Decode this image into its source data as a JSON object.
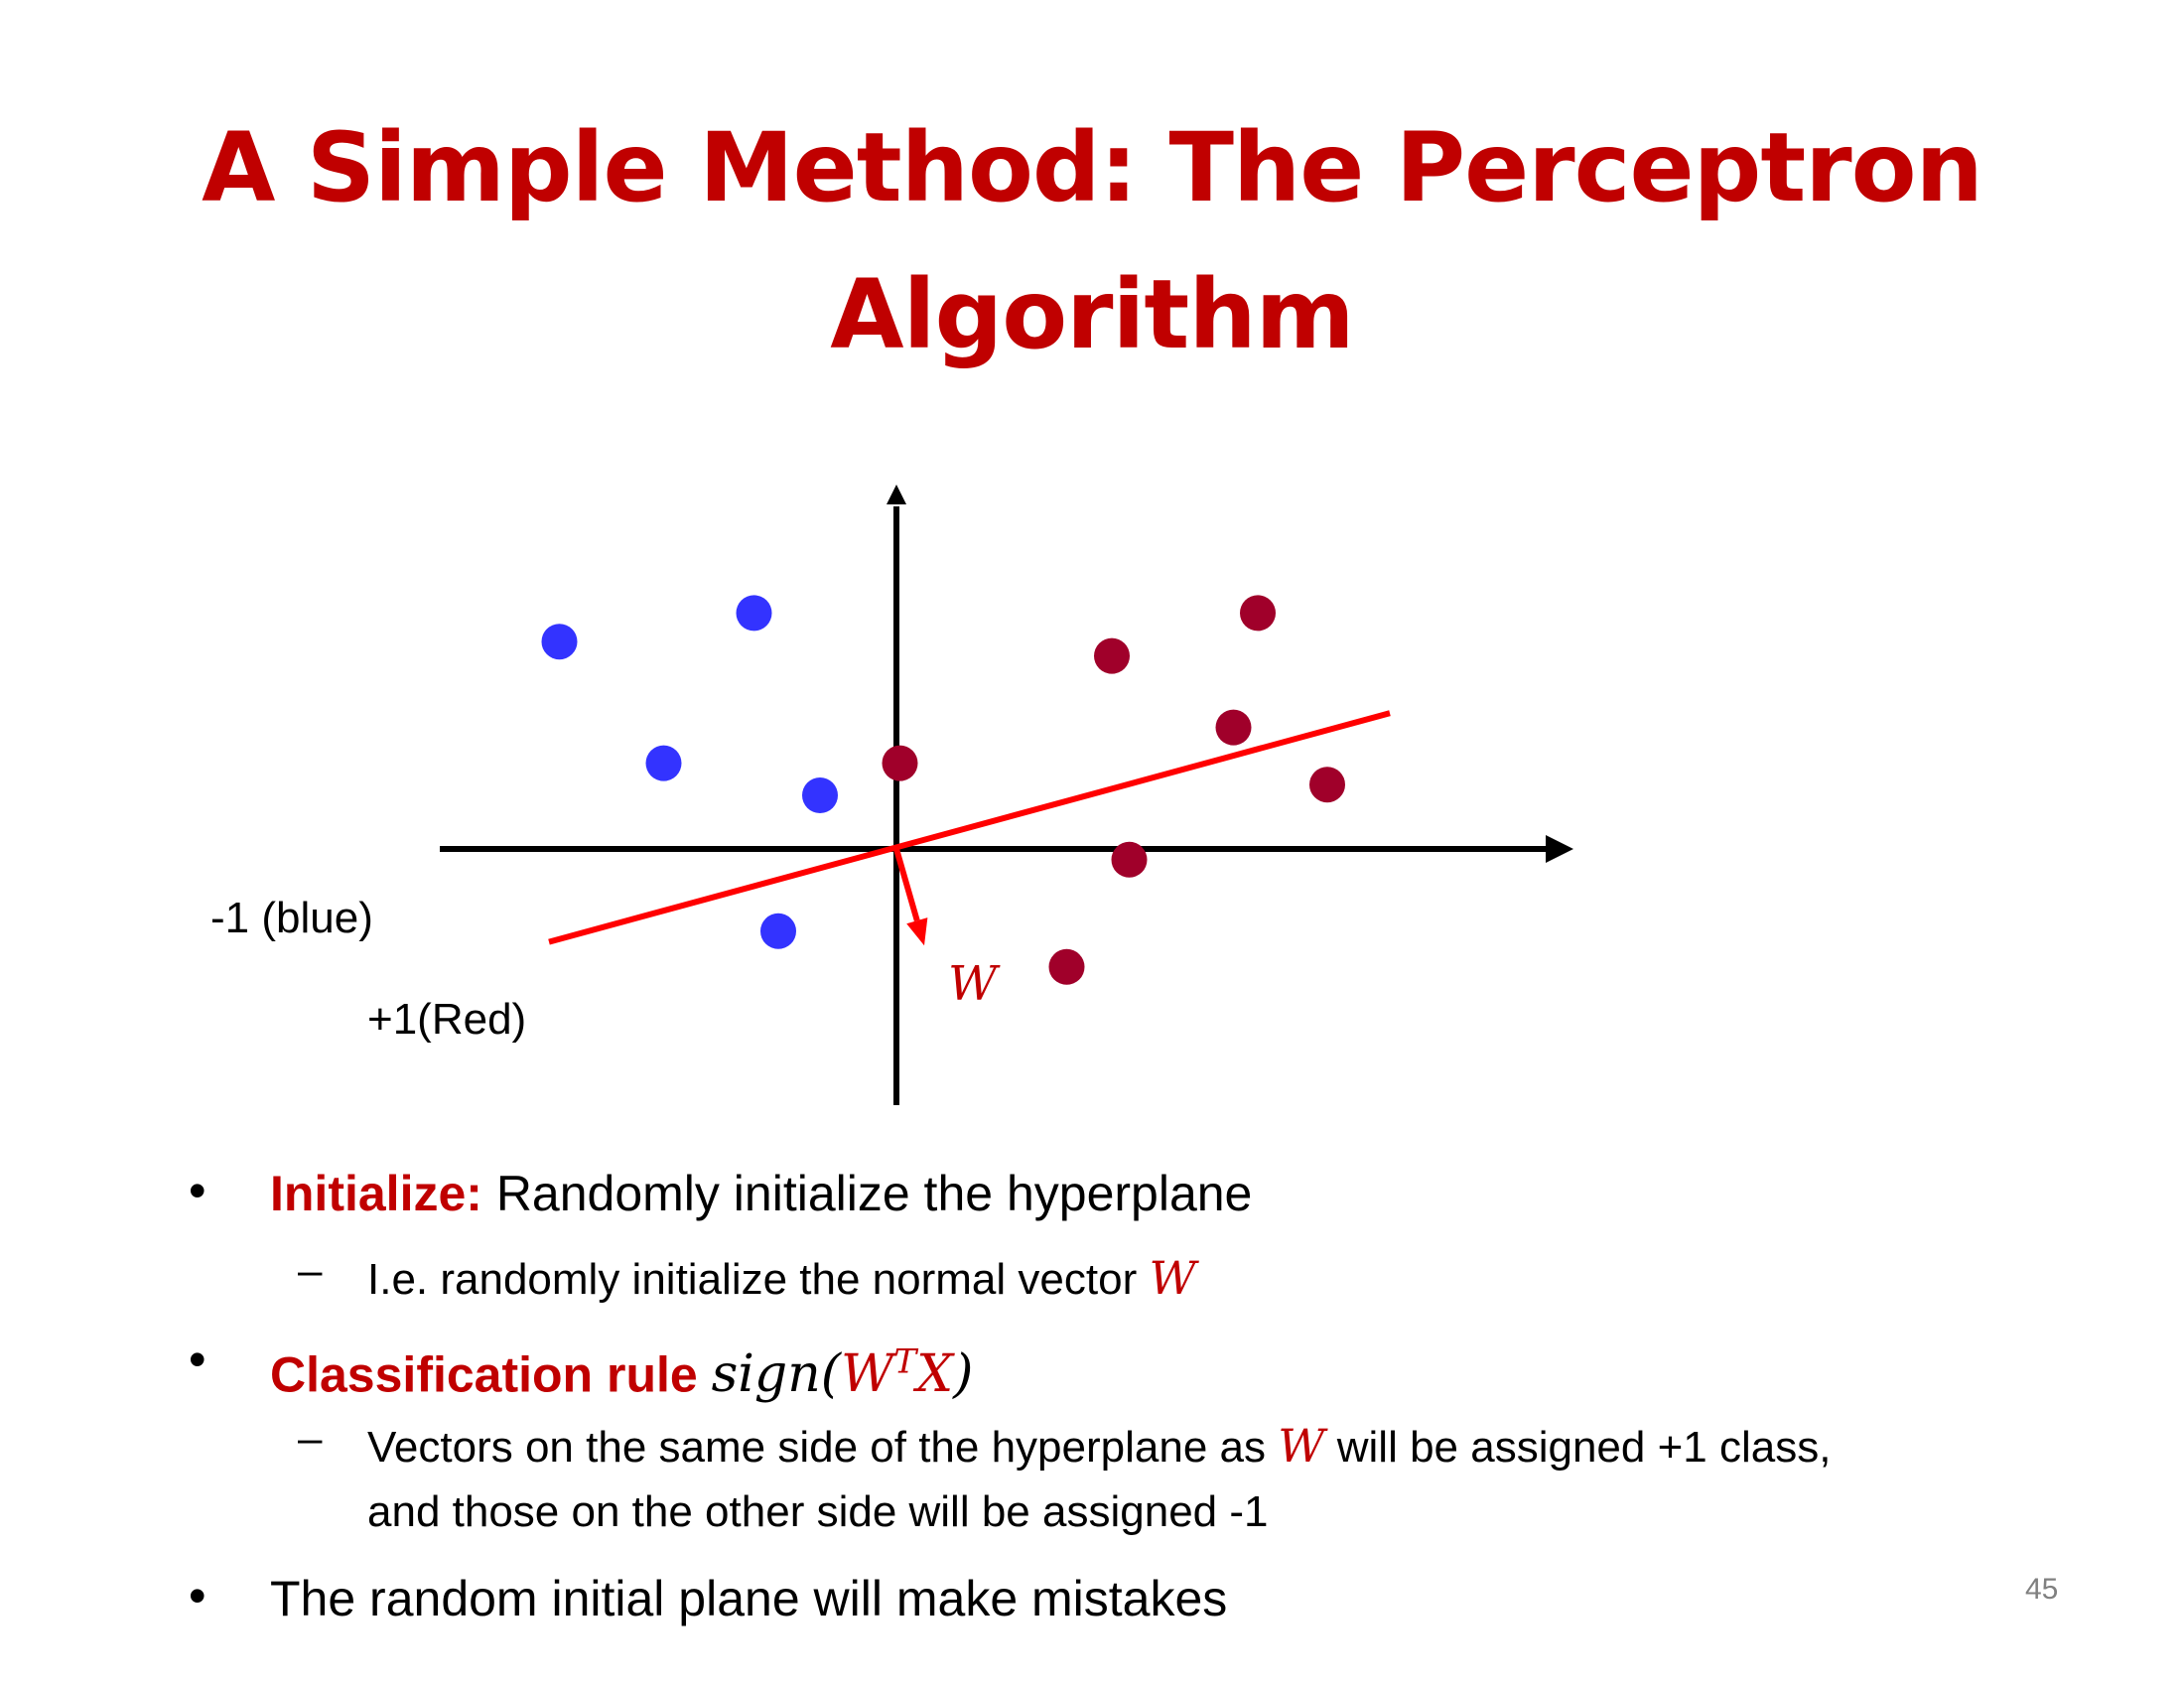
{
  "title": {
    "line1": "A Simple Method: The Perceptron",
    "line2": "Algorithm"
  },
  "diagram": {
    "blue_color": "#3333ff",
    "red_color": "#a0002a",
    "hyperplane_color": "#ff0000",
    "blue_points": [
      [
        -4.85,
        2.9
      ],
      [
        -2.05,
        3.3
      ],
      [
        -3.35,
        1.2
      ],
      [
        -1.1,
        0.75
      ],
      [
        -1.7,
        -1.15
      ]
    ],
    "red_points": [
      [
        0.05,
        1.2
      ],
      [
        3.1,
        2.7
      ],
      [
        5.2,
        3.3
      ],
      [
        4.85,
        1.7
      ],
      [
        6.2,
        0.9
      ],
      [
        3.35,
        -0.15
      ],
      [
        2.45,
        -1.65
      ]
    ],
    "hyperplane": [
      [
        -5.0,
        -1.3
      ],
      [
        7.1,
        1.9
      ]
    ],
    "normal_vector": [
      0.4,
      -1.35
    ],
    "labels": {
      "neg_class": "-1 (blue)",
      "pos_class": "+1(Red)",
      "w": "W"
    }
  },
  "bullets": {
    "b1": {
      "marker": "•",
      "keyword": "Initialize:",
      "text": " Randomly initialize the hyperplane"
    },
    "b1_sub": {
      "marker": "–",
      "text": "I.e. randomly initialize the normal vector ",
      "math": "W"
    },
    "b2": {
      "marker": "•",
      "keyword": "Classification rule",
      "math_pre": "sign(",
      "math_w": "W",
      "math_t": "T",
      "math_x": "X",
      "math_post": ")"
    },
    "b2_sub": {
      "marker": "–",
      "text1": "Vectors on the same side of the hyperplane as ",
      "math": "W",
      "text2": " will be assigned +1 class,",
      "text3": "and those on the other side will be assigned  -1"
    },
    "b3": {
      "marker": "•",
      "text": "The random initial plane will make mistakes"
    }
  },
  "page_number": "45"
}
